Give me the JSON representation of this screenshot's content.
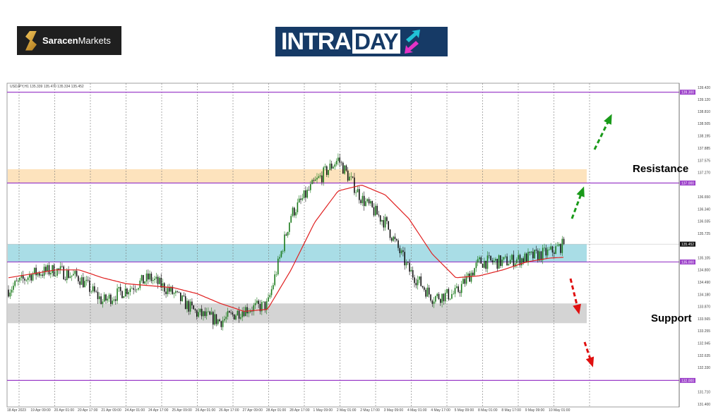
{
  "logos": {
    "left": {
      "brand_bold": "Saracen",
      "brand_rest": "Markets"
    },
    "right": {
      "word_a": "INTRA",
      "word_b": "DAY"
    }
  },
  "chart_header": "USDJPY,H1  135.339 135.470 135.334 135.452",
  "labels": {
    "resistance": "Resistance",
    "support": "Support"
  },
  "colors": {
    "bull": "#1a7a1a",
    "bear": "#111111",
    "ma": "#e02020",
    "level": "#9b3fc9",
    "resistance_zone": "#fde3bd",
    "current_zone": "#a9dde6",
    "support_zone": "#d4d4d4",
    "up_arrow": "#1a9a1a",
    "down_arrow": "#e01010",
    "resistance_text": "#8b0a0a",
    "support_text": "#8a8a10"
  },
  "chart_data": {
    "type": "candlestick",
    "symbol": "USDJPY",
    "timeframe": "H1",
    "ylim": [
      131.4,
      139.42
    ],
    "grid": "vertical-dotted",
    "y_ticks": [
      "139.420",
      "139.120",
      "138.810",
      "138.505",
      "138.195",
      "137.885",
      "137.575",
      "137.270",
      "136.650",
      "136.340",
      "136.035",
      "135.725",
      "135.105",
      "134.800",
      "134.490",
      "134.180",
      "133.870",
      "133.565",
      "133.255",
      "132.945",
      "132.635",
      "132.330",
      "131.710",
      "131.400"
    ],
    "x_ticks": [
      "18 Apr 2023",
      "19 Apr 09:00",
      "20 Apr 01:00",
      "20 Apr 17:00",
      "21 Apr 09:00",
      "24 Apr 01:00",
      "24 Apr 17:00",
      "25 Apr 09:00",
      "26 Apr 01:00",
      "26 Apr 17:00",
      "27 Apr 09:00",
      "28 Apr 01:00",
      "28 Apr 17:00",
      "1 May 09:00",
      "2 May 01:00",
      "2 May 17:00",
      "3 May 09:00",
      "4 May 01:00",
      "4 May 17:00",
      "5 May 09:00",
      "8 May 01:00",
      "8 May 17:00",
      "9 May 09:00",
      "10 May 01:00"
    ],
    "approx_close_at_ticks": [
      134.3,
      134.7,
      134.8,
      134.6,
      134.0,
      134.3,
      134.6,
      134.2,
      133.7,
      133.5,
      133.8,
      133.9,
      136.2,
      137.0,
      137.6,
      136.6,
      136.0,
      134.8,
      134.1,
      134.2,
      135.0,
      135.0,
      135.1,
      135.25
    ],
    "moving_average_at_ticks": [
      134.6,
      134.7,
      134.8,
      134.8,
      134.6,
      134.45,
      134.4,
      134.35,
      134.2,
      133.95,
      133.75,
      133.8,
      134.8,
      136.0,
      136.8,
      136.95,
      136.7,
      136.1,
      135.2,
      134.6,
      134.65,
      134.8,
      135.0,
      135.1
    ],
    "last_price": 135.452,
    "levels": [
      {
        "price": 139.3,
        "label": "139.300"
      },
      {
        "price": 137.0,
        "label": "137.000"
      },
      {
        "price": 135.0,
        "label": "135.000"
      },
      {
        "price": 132.0,
        "label": "132.000"
      }
    ],
    "last_price_label": "135.452",
    "zones": [
      {
        "name": "resistance",
        "from": 137.0,
        "to": 137.35
      },
      {
        "name": "current-range",
        "from": 135.0,
        "to": 135.45
      },
      {
        "name": "support",
        "from": 133.45,
        "to": 133.95
      }
    ]
  }
}
